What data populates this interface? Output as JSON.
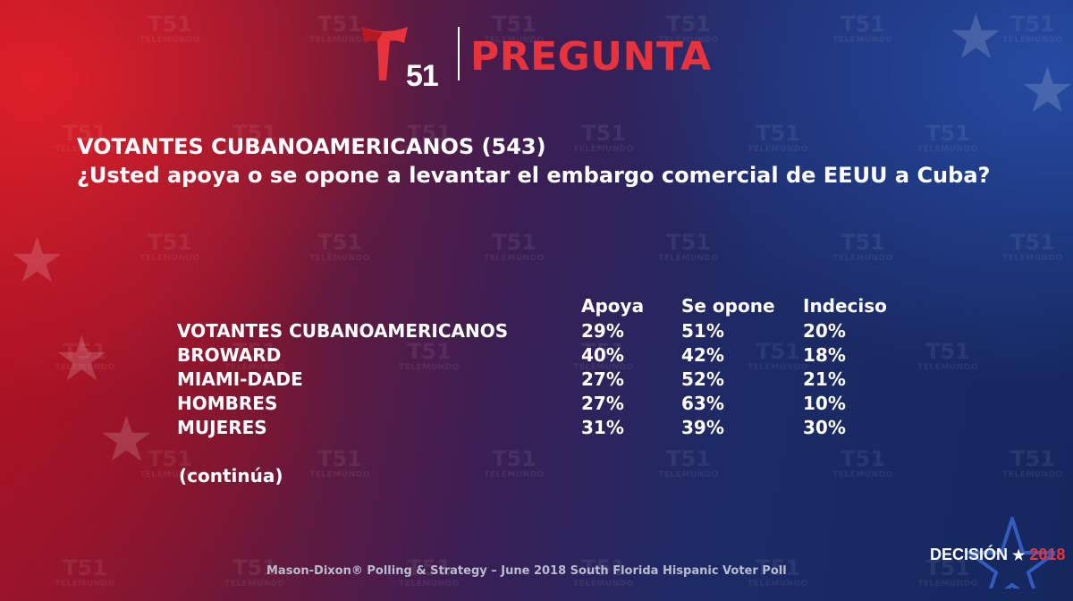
{
  "header": {
    "logo_number": "51",
    "title": "PREGUNTA"
  },
  "watermark": {
    "number": "51",
    "label": "TELEMUNDO"
  },
  "question": {
    "title": "VOTANTES CUBANOAMERICANOS (543)",
    "text": "¿Usted apoya o se opone a levantar el embargo comercial de EEUU a Cuba?"
  },
  "chart_data": {
    "type": "table",
    "columns": [
      "Apoya",
      "Se opone",
      "Indeciso"
    ],
    "rows": [
      {
        "label": "VOTANTES CUBANOAMERICANOS",
        "values": [
          "29%",
          "51%",
          "20%"
        ]
      },
      {
        "label": "BROWARD",
        "values": [
          "40%",
          "42%",
          "18%"
        ]
      },
      {
        "label": "MIAMI-DADE",
        "values": [
          "27%",
          "52%",
          "21%"
        ]
      },
      {
        "label": "HOMBRES",
        "values": [
          "27%",
          "63%",
          "10%"
        ]
      },
      {
        "label": "MUJERES",
        "values": [
          "31%",
          "39%",
          "30%"
        ]
      }
    ]
  },
  "note": "(continúa)",
  "footer": {
    "source": "Mason-Dixon® Polling & Strategy – June 2018 South Florida Hispanic Voter Poll"
  },
  "badge": {
    "word": "DECISIÓN",
    "star": "★",
    "year": "2018"
  },
  "colors": {
    "accent_red": "#e8333c",
    "text": "#ffffff"
  }
}
